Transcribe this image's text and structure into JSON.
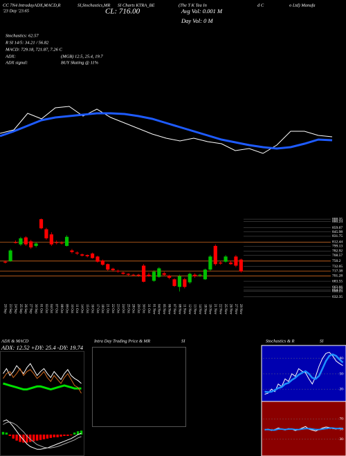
{
  "header": {
    "line1": [
      "CC 7N4 IntradayADX,MACD,R",
      "SI,Stochastics,MR",
      "SI Charts KTRA_BE",
      "(The T K Tea In",
      "d C",
      "o Ltd) Manufa"
    ],
    "day": "'23  Day  '23.65",
    "close": "CL: 716.00",
    "avg_vol": "Avg Vol: 0.001 M",
    "day_vol": "Day Vol: 0  M",
    "stochastics": "Stochastics: 62.57",
    "rsi": "R  SI 14/5: 34.21 / 56.82",
    "macd": "MACD: 729.18, 721.87, 7.26  C",
    "adx": "ADX:",
    "adx_vals": "(MGB) 12.5, 25.4, 19.7",
    "adx_signal": "ADX  signal:",
    "signal": "BUY Skating @ 11%"
  },
  "panels": {
    "adx_title": "ADX  & MACD",
    "adx_values": "ADX: 12.52  +DY: 25.4  -DY: 19.74",
    "intraday_title": "Intra  Day Trading Price  & MR",
    "intraday_si": "SI",
    "stoch_title": "Stochastics & R",
    "stoch_si": "SI"
  },
  "chart_data": [
    {
      "type": "line",
      "x": [
        0,
        20,
        40,
        60,
        80,
        100,
        120,
        140,
        160,
        180,
        200,
        220,
        240,
        260,
        280,
        300,
        320,
        340,
        360,
        380,
        400,
        420,
        440,
        460,
        480
      ],
      "xlim": [
        0,
        480
      ],
      "ylim": [
        0,
        110
      ],
      "series": [
        {
          "color": "#ffffff",
          "line_width": 1,
          "values": [
            47,
            52,
            76,
            68,
            84,
            86,
            72,
            82,
            70,
            62,
            54,
            46,
            40,
            36,
            40,
            35,
            32,
            22,
            25,
            18,
            30,
            50,
            50,
            44,
            42
          ]
        },
        {
          "color": "#1e5bff",
          "line_width": 3,
          "values": [
            43,
            50,
            58,
            66,
            70,
            72,
            74,
            76,
            76,
            75,
            72,
            68,
            62,
            56,
            50,
            44,
            38,
            34,
            30,
            27,
            25,
            27,
            32,
            38,
            37
          ]
        }
      ]
    },
    {
      "type": "candlestick",
      "categories": [
        "20 Sep",
        "23 Sep",
        "24 Sep",
        "25 Sep",
        "26 Sep",
        "27 Sep",
        "30 Sep",
        "01 Oct",
        "03 Oct",
        "04 Oct",
        "07 Oct",
        "08 Oct",
        "09 Oct",
        "10 Oct",
        "11 Oct",
        "14 Oct",
        "15 Oct",
        "16 Oct",
        "17 Oct",
        "18 Oct",
        "21 Oct",
        "22 Oct",
        "23 Oct",
        "24 Oct",
        "25 Oct",
        "28 Oct",
        "29 Oct",
        "30 Oct",
        "31 Oct",
        "01 Nov",
        "04 Nov",
        "05 Nov",
        "06 Nov",
        "07 Nov",
        "08 Nov",
        "11 Nov",
        "12 Nov",
        "13 Nov",
        "14 Nov",
        "18 Nov",
        "19 Nov",
        "21 Nov",
        "22 Nov",
        "25 Nov",
        "26 Nov",
        "27 Nov",
        "29 Nov"
      ],
      "open": [
        748,
        750,
        812,
        805,
        828,
        815,
        800,
        888,
        855,
        838,
        812,
        810,
        800,
        785,
        778,
        772,
        770,
        775,
        765,
        752,
        740,
        725,
        718,
        712,
        708,
        705,
        705,
        735,
        705,
        685,
        698,
        710,
        702,
        690,
        665,
        690,
        680,
        705,
        703,
        690,
        722,
        800,
        745,
        748,
        745,
        765,
        755
      ],
      "high": [
        752,
        790,
        818,
        830,
        832,
        820,
        812,
        890,
        860,
        845,
        818,
        815,
        835,
        790,
        782,
        775,
        772,
        778,
        768,
        755,
        742,
        728,
        722,
        715,
        710,
        708,
        708,
        740,
        712,
        720,
        730,
        715,
        705,
        693,
        705,
        695,
        712,
        710,
        708,
        725,
        770,
        805,
        750,
        770,
        752,
        770,
        758
      ],
      "low": [
        742,
        748,
        808,
        800,
        800,
        790,
        795,
        855,
        820,
        800,
        805,
        805,
        798,
        775,
        770,
        765,
        762,
        758,
        745,
        735,
        718,
        715,
        712,
        705,
        702,
        700,
        698,
        680,
        698,
        682,
        695,
        700,
        690,
        665,
        650,
        660,
        675,
        695,
        698,
        688,
        718,
        735,
        738,
        745,
        738,
        730,
        712
      ],
      "close": [
        745,
        785,
        810,
        825,
        805,
        795,
        808,
        858,
        825,
        805,
        810,
        808,
        830,
        780,
        775,
        768,
        766,
        760,
        748,
        738,
        722,
        720,
        716,
        708,
        705,
        704,
        702,
        682,
        700,
        715,
        726,
        705,
        695,
        668,
        700,
        665,
        708,
        700,
        705,
        722,
        765,
        740,
        742,
        765,
        740,
        735,
        716
      ],
      "up_color": "#00c000",
      "down_color": "#ff0000",
      "level_color": "#d2691e",
      "ylim": [
        620,
        900
      ],
      "yticks": [
        888.35,
        880.24,
        859.67,
        845.98,
        831.75,
        812.44,
        799.13,
        782.92,
        768.57,
        750.2,
        732.05,
        717.38,
        701.28,
        683.55,
        663.66,
        654.37,
        650.23,
        632.35
      ],
      "levels": [
        812.44,
        750.2,
        717.38,
        701.28
      ]
    },
    {
      "type": "line",
      "ylim": [
        0,
        60
      ],
      "series": [
        {
          "color": "#00e000",
          "line_width": 3,
          "values": [
            30,
            29,
            28,
            27,
            26,
            25,
            24,
            24,
            25,
            26,
            27,
            27,
            26,
            25,
            24,
            25,
            26,
            27,
            28,
            27,
            26,
            25,
            25,
            25
          ]
        },
        {
          "color": "#ffffff",
          "line_width": 1,
          "values": [
            40,
            45,
            38,
            42,
            48,
            44,
            40,
            46,
            50,
            44,
            38,
            42,
            45,
            40,
            36,
            42,
            38,
            34,
            40,
            44,
            38,
            35,
            33,
            30
          ]
        },
        {
          "color": "#d2691e",
          "line_width": 1,
          "values": [
            35,
            40,
            42,
            36,
            40,
            45,
            38,
            42,
            44,
            40,
            35,
            38,
            42,
            36,
            32,
            38,
            34,
            30,
            36,
            40,
            34,
            28,
            26,
            20
          ]
        }
      ]
    },
    {
      "type": "bar",
      "ylim": [
        -30,
        30
      ],
      "pos_color": "#00c000",
      "neg_color": "#ff0000",
      "values": [
        4,
        3,
        -2,
        -6,
        -9,
        -11,
        -12,
        -12,
        -11,
        -10,
        -9,
        -8,
        -7,
        -6,
        -5,
        -4,
        -4,
        -3,
        -2,
        -2,
        -1,
        3,
        5,
        6
      ],
      "series": [
        {
          "color": "#ffffff",
          "line_width": 1,
          "values": [
            20,
            22,
            18,
            12,
            5,
            -2,
            -8,
            -14,
            -18,
            -20,
            -22,
            -22,
            -21,
            -20,
            -18,
            -16,
            -14,
            -12,
            -10,
            -8,
            -6,
            -3,
            0,
            2
          ]
        },
        {
          "color": "#aaaaaa",
          "line_width": 1,
          "values": [
            15,
            18,
            19,
            17,
            14,
            9,
            4,
            -2,
            -7,
            -11,
            -15,
            -17,
            -19,
            -20,
            -20,
            -19,
            -18,
            -16,
            -14,
            -12,
            -10,
            -8,
            -5,
            -3
          ]
        }
      ]
    },
    {
      "type": "line",
      "ylim": [
        0,
        100
      ],
      "yticks": [
        80,
        50,
        20
      ],
      "series": [
        {
          "color": "#ffffff",
          "line_width": 1,
          "values": [
            10,
            12,
            20,
            15,
            30,
            25,
            40,
            35,
            50,
            45,
            60,
            55,
            52,
            40,
            30,
            45,
            65,
            80,
            90,
            92,
            85,
            75,
            70,
            66
          ]
        },
        {
          "color": "#1e90ff",
          "line_width": 2.5,
          "values": [
            15,
            14,
            15,
            18,
            22,
            24,
            30,
            32,
            38,
            42,
            48,
            52,
            55,
            50,
            42,
            40,
            46,
            60,
            75,
            85,
            88,
            85,
            78,
            72
          ]
        }
      ]
    },
    {
      "type": "line",
      "ylim": [
        0,
        100
      ],
      "yticks": [
        70,
        50,
        30
      ],
      "series": [
        {
          "color": "#ffffff",
          "line_width": 1,
          "values": [
            48,
            50,
            47,
            49,
            52,
            50,
            48,
            51,
            50,
            47,
            49,
            52,
            55,
            50,
            48,
            46,
            49,
            52,
            54,
            53,
            51,
            50,
            52,
            51
          ]
        },
        {
          "color": "#1e90ff",
          "line_width": 2,
          "values": [
            49,
            49,
            48,
            48,
            50,
            50,
            49,
            50,
            50,
            49,
            49,
            50,
            51,
            51,
            50,
            49,
            49,
            50,
            51,
            52,
            52,
            51,
            51,
            51
          ]
        }
      ]
    }
  ]
}
